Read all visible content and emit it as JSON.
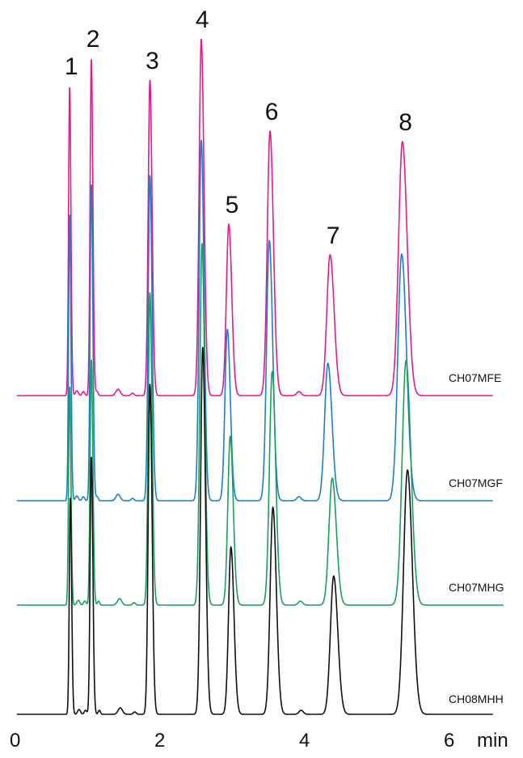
{
  "chart_data": {
    "type": "line",
    "xlabel": "min",
    "x_ticks": [
      {
        "value": 0,
        "label": "0"
      },
      {
        "value": 2,
        "label": "2"
      },
      {
        "value": 4,
        "label": "4"
      },
      {
        "value": 6,
        "label": "6"
      }
    ],
    "xlim": [
      0,
      6.6
    ],
    "series": [
      {
        "name": "CH07MFE",
        "color": "#e6198c",
        "end_x": 6.6,
        "shift": 0.0,
        "peaks": [
          [
            0.75,
            383
          ],
          [
            1.05,
            417
          ],
          [
            1.86,
            390
          ],
          [
            2.57,
            441
          ],
          [
            2.95,
            212
          ],
          [
            3.52,
            327
          ],
          [
            4.35,
            174
          ],
          [
            5.35,
            314
          ]
        ]
      },
      {
        "name": "CH07MGF",
        "color": "#1f7ec9",
        "end_x": 6.6,
        "shift": 0.0,
        "peaks": [
          [
            0.75,
            355
          ],
          [
            1.05,
            392
          ],
          [
            1.86,
            402
          ],
          [
            2.57,
            446
          ],
          [
            2.93,
            212
          ],
          [
            3.51,
            322
          ],
          [
            4.32,
            170
          ],
          [
            5.34,
            305
          ]
        ]
      },
      {
        "name": "CH07MHG",
        "color": "#16a05a",
        "end_x": 6.75,
        "shift": 0.02,
        "peaks": [
          [
            0.75,
            271
          ],
          [
            1.05,
            304
          ],
          [
            1.86,
            386
          ],
          [
            2.58,
            447
          ],
          [
            2.97,
            209
          ],
          [
            3.55,
            289
          ],
          [
            4.38,
            157
          ],
          [
            5.4,
            302
          ]
        ]
      },
      {
        "name": "CH08MHH",
        "color": "#111111",
        "end_x": 6.6,
        "shift": 0.03,
        "peaks": [
          [
            0.76,
            267
          ],
          [
            1.05,
            319
          ],
          [
            1.86,
            408
          ],
          [
            2.59,
            454
          ],
          [
            2.98,
            207
          ],
          [
            3.56,
            256
          ],
          [
            4.4,
            171
          ],
          [
            5.42,
            302
          ]
        ]
      }
    ],
    "peak_labels": [
      {
        "text": "1",
        "x": 0.68
      },
      {
        "text": "2",
        "x": 0.98
      },
      {
        "text": "3",
        "x": 1.8
      },
      {
        "text": "4",
        "x": 2.49
      },
      {
        "text": "5",
        "x": 2.9
      },
      {
        "text": "6",
        "x": 3.45
      },
      {
        "text": "7",
        "x": 4.3
      },
      {
        "text": "8",
        "x": 5.3
      }
    ]
  }
}
